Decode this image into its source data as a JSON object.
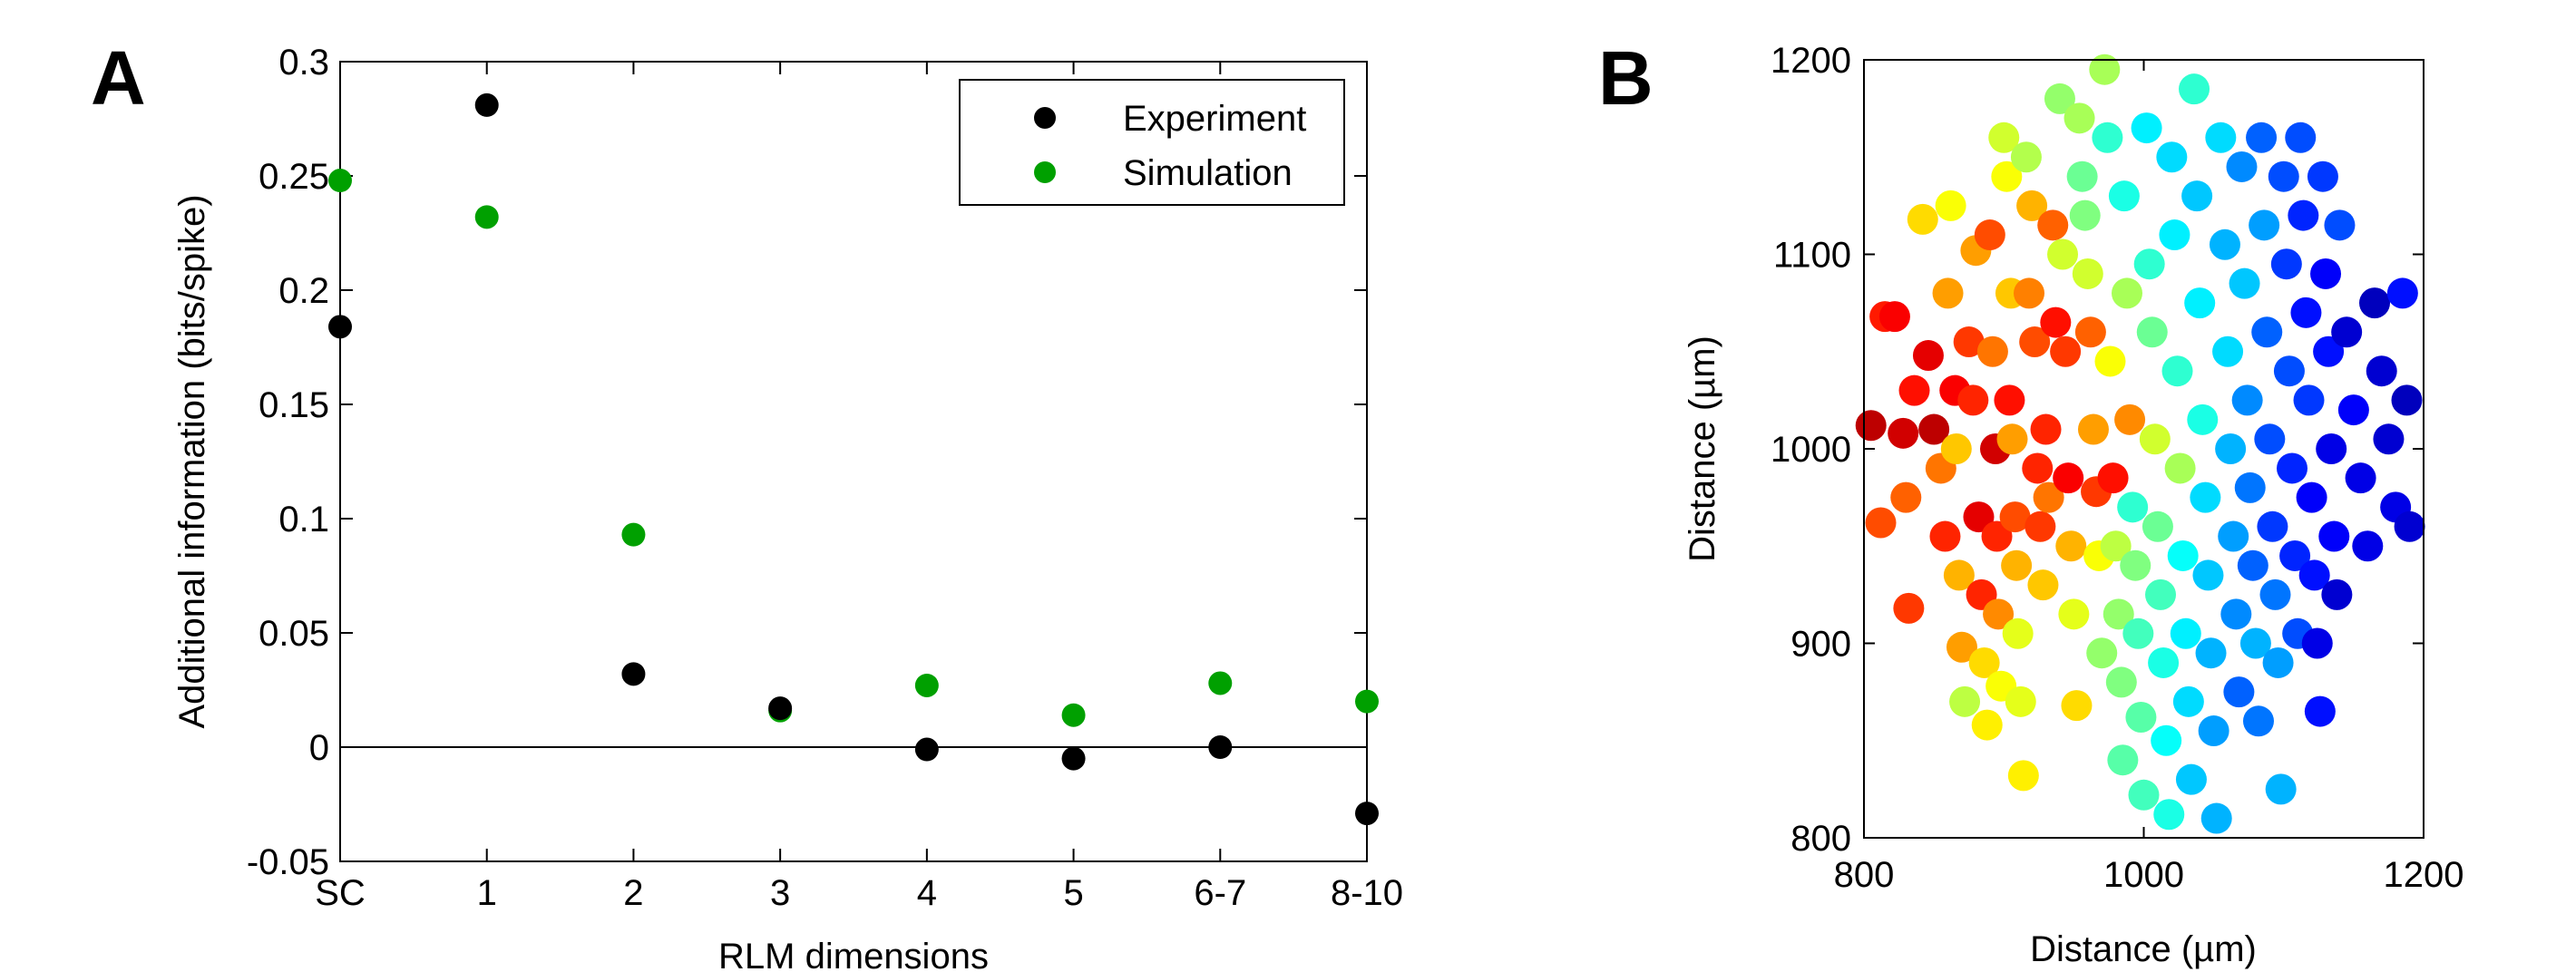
{
  "panels": [
    {
      "letter": "A"
    },
    {
      "letter": "B"
    }
  ],
  "chart_data": [
    {
      "type": "scatter",
      "categories": [
        "SC",
        "1",
        "2",
        "3",
        "4",
        "5",
        "6-7",
        "8-10"
      ],
      "xlabel": "RLM dimensions",
      "ylabel": "Additional information (bits/spike)",
      "ylim": [
        -0.05,
        0.3
      ],
      "yticks": [
        -0.05,
        0,
        0.05,
        0.1,
        0.15,
        0.2,
        0.25,
        0.3
      ],
      "ytick_labels": [
        "-0.05",
        "0",
        "0.05",
        "0.1",
        "0.15",
        "0.2",
        "0.25",
        "0.3"
      ],
      "zero_line": true,
      "grid": false,
      "legend": "top-right",
      "series": [
        {
          "name": "Experiment",
          "color": "#000000",
          "values": [
            0.184,
            0.281,
            0.032,
            0.017,
            -0.001,
            -0.005,
            0.0,
            -0.029
          ]
        },
        {
          "name": "Simulation",
          "color": "#00a000",
          "values": [
            0.248,
            0.232,
            0.093,
            0.016,
            0.027,
            0.014,
            0.028,
            0.02
          ]
        }
      ]
    },
    {
      "type": "scatter",
      "xlabel": "Distance (µm)",
      "ylabel": "Distance (µm)",
      "xlim": [
        800,
        1200
      ],
      "ylim": [
        800,
        1200
      ],
      "xticks": [
        800,
        1000,
        1200
      ],
      "yticks": [
        800,
        900,
        1000,
        1100,
        1200
      ],
      "grid": false,
      "colormap": "jet",
      "points": [
        [
          805,
          1012,
          0.94
        ],
        [
          812,
          962,
          0.8
        ],
        [
          815,
          1068,
          0.85
        ],
        [
          822,
          1068,
          0.88
        ],
        [
          828,
          1008,
          0.92
        ],
        [
          830,
          975,
          0.78
        ],
        [
          832,
          918,
          0.82
        ],
        [
          836,
          1030,
          0.86
        ],
        [
          842,
          1118,
          0.66
        ],
        [
          846,
          1048,
          0.9
        ],
        [
          850,
          1010,
          0.94
        ],
        [
          855,
          990,
          0.76
        ],
        [
          858,
          955,
          0.84
        ],
        [
          860,
          1080,
          0.72
        ],
        [
          862,
          1125,
          0.62
        ],
        [
          865,
          1030,
          0.88
        ],
        [
          866,
          1000,
          0.68
        ],
        [
          868,
          935,
          0.7
        ],
        [
          870,
          898,
          0.72
        ],
        [
          872,
          870,
          0.56
        ],
        [
          875,
          1055,
          0.82
        ],
        [
          878,
          1025,
          0.84
        ],
        [
          880,
          1102,
          0.72
        ],
        [
          882,
          965,
          0.9
        ],
        [
          884,
          925,
          0.84
        ],
        [
          886,
          890,
          0.66
        ],
        [
          888,
          858,
          0.64
        ],
        [
          890,
          1110,
          0.8
        ],
        [
          892,
          1050,
          0.76
        ],
        [
          894,
          1000,
          0.92
        ],
        [
          895,
          955,
          0.84
        ],
        [
          896,
          915,
          0.74
        ],
        [
          898,
          878,
          0.62
        ],
        [
          900,
          1160,
          0.58
        ],
        [
          902,
          1140,
          0.62
        ],
        [
          904,
          1025,
          0.86
        ],
        [
          905,
          1080,
          0.68
        ],
        [
          906,
          1005,
          0.72
        ],
        [
          908,
          965,
          0.8
        ],
        [
          909,
          940,
          0.7
        ],
        [
          910,
          905,
          0.6
        ],
        [
          912,
          870,
          0.6
        ],
        [
          914,
          832,
          0.64
        ],
        [
          916,
          1150,
          0.55
        ],
        [
          918,
          1080,
          0.75
        ],
        [
          920,
          1125,
          0.7
        ],
        [
          922,
          1055,
          0.8
        ],
        [
          924,
          990,
          0.84
        ],
        [
          926,
          960,
          0.82
        ],
        [
          928,
          930,
          0.68
        ],
        [
          930,
          1010,
          0.84
        ],
        [
          932,
          975,
          0.76
        ],
        [
          935,
          1115,
          0.78
        ],
        [
          937,
          1065,
          0.86
        ],
        [
          940,
          1180,
          0.52
        ],
        [
          942,
          1100,
          0.58
        ],
        [
          944,
          1050,
          0.82
        ],
        [
          946,
          985,
          0.88
        ],
        [
          948,
          950,
          0.7
        ],
        [
          950,
          915,
          0.6
        ],
        [
          952,
          868,
          0.66
        ],
        [
          954,
          1170,
          0.54
        ],
        [
          956,
          1140,
          0.48
        ],
        [
          958,
          1120,
          0.5
        ],
        [
          960,
          1090,
          0.58
        ],
        [
          962,
          1060,
          0.78
        ],
        [
          964,
          1010,
          0.72
        ],
        [
          966,
          978,
          0.82
        ],
        [
          968,
          945,
          0.62
        ],
        [
          970,
          895,
          0.52
        ],
        [
          972,
          1195,
          0.54
        ],
        [
          974,
          1160,
          0.42
        ],
        [
          976,
          1045,
          0.62
        ],
        [
          978,
          985,
          0.86
        ],
        [
          980,
          950,
          0.56
        ],
        [
          982,
          915,
          0.52
        ],
        [
          984,
          880,
          0.5
        ],
        [
          985,
          840,
          0.46
        ],
        [
          986,
          1130,
          0.4
        ],
        [
          988,
          1080,
          0.54
        ],
        [
          990,
          1015,
          0.74
        ],
        [
          992,
          970,
          0.42
        ],
        [
          994,
          940,
          0.5
        ],
        [
          996,
          905,
          0.44
        ],
        [
          998,
          862,
          0.46
        ],
        [
          1000,
          822,
          0.44
        ],
        [
          1002,
          1165,
          0.36
        ],
        [
          1004,
          1095,
          0.42
        ],
        [
          1006,
          1060,
          0.48
        ],
        [
          1008,
          1005,
          0.58
        ],
        [
          1010,
          960,
          0.48
        ],
        [
          1012,
          925,
          0.44
        ],
        [
          1014,
          890,
          0.4
        ],
        [
          1016,
          850,
          0.38
        ],
        [
          1018,
          812,
          0.4
        ],
        [
          1020,
          1150,
          0.34
        ],
        [
          1022,
          1110,
          0.36
        ],
        [
          1024,
          1040,
          0.42
        ],
        [
          1026,
          990,
          0.54
        ],
        [
          1028,
          945,
          0.38
        ],
        [
          1030,
          905,
          0.36
        ],
        [
          1032,
          870,
          0.34
        ],
        [
          1034,
          830,
          0.32
        ],
        [
          1036,
          1185,
          0.42
        ],
        [
          1038,
          1130,
          0.32
        ],
        [
          1040,
          1075,
          0.36
        ],
        [
          1042,
          1015,
          0.4
        ],
        [
          1044,
          975,
          0.34
        ],
        [
          1046,
          935,
          0.32
        ],
        [
          1048,
          895,
          0.3
        ],
        [
          1050,
          855,
          0.28
        ],
        [
          1052,
          810,
          0.3
        ],
        [
          1055,
          1160,
          0.34
        ],
        [
          1058,
          1105,
          0.3
        ],
        [
          1060,
          1050,
          0.34
        ],
        [
          1062,
          1000,
          0.3
        ],
        [
          1064,
          955,
          0.28
        ],
        [
          1066,
          915,
          0.26
        ],
        [
          1068,
          875,
          0.22
        ],
        [
          1070,
          1145,
          0.26
        ],
        [
          1072,
          1085,
          0.32
        ],
        [
          1074,
          1025,
          0.26
        ],
        [
          1076,
          980,
          0.24
        ],
        [
          1078,
          940,
          0.22
        ],
        [
          1080,
          900,
          0.3
        ],
        [
          1082,
          860,
          0.24
        ],
        [
          1084,
          1160,
          0.22
        ],
        [
          1086,
          1115,
          0.28
        ],
        [
          1088,
          1060,
          0.22
        ],
        [
          1090,
          1005,
          0.2
        ],
        [
          1092,
          960,
          0.18
        ],
        [
          1094,
          925,
          0.24
        ],
        [
          1096,
          890,
          0.28
        ],
        [
          1098,
          825,
          0.3
        ],
        [
          1100,
          1140,
          0.2
        ],
        [
          1102,
          1095,
          0.18
        ],
        [
          1104,
          1040,
          0.2
        ],
        [
          1106,
          990,
          0.16
        ],
        [
          1108,
          945,
          0.16
        ],
        [
          1110,
          905,
          0.2
        ],
        [
          1112,
          1160,
          0.2
        ],
        [
          1114,
          1120,
          0.16
        ],
        [
          1116,
          1070,
          0.14
        ],
        [
          1118,
          1025,
          0.18
        ],
        [
          1120,
          975,
          0.12
        ],
        [
          1122,
          935,
          0.14
        ],
        [
          1124,
          900,
          0.1
        ],
        [
          1126,
          865,
          0.14
        ],
        [
          1128,
          1140,
          0.18
        ],
        [
          1130,
          1090,
          0.12
        ],
        [
          1132,
          1050,
          0.14
        ],
        [
          1134,
          1000,
          0.1
        ],
        [
          1136,
          955,
          0.12
        ],
        [
          1138,
          925,
          0.08
        ],
        [
          1140,
          1115,
          0.2
        ],
        [
          1145,
          1060,
          0.08
        ],
        [
          1150,
          1020,
          0.12
        ],
        [
          1155,
          985,
          0.1
        ],
        [
          1160,
          950,
          0.1
        ],
        [
          1165,
          1075,
          0.06
        ],
        [
          1170,
          1040,
          0.08
        ],
        [
          1175,
          1005,
          0.08
        ],
        [
          1180,
          970,
          0.1
        ],
        [
          1185,
          1080,
          0.14
        ],
        [
          1188,
          1025,
          0.06
        ],
        [
          1190,
          960,
          0.08
        ]
      ]
    }
  ]
}
